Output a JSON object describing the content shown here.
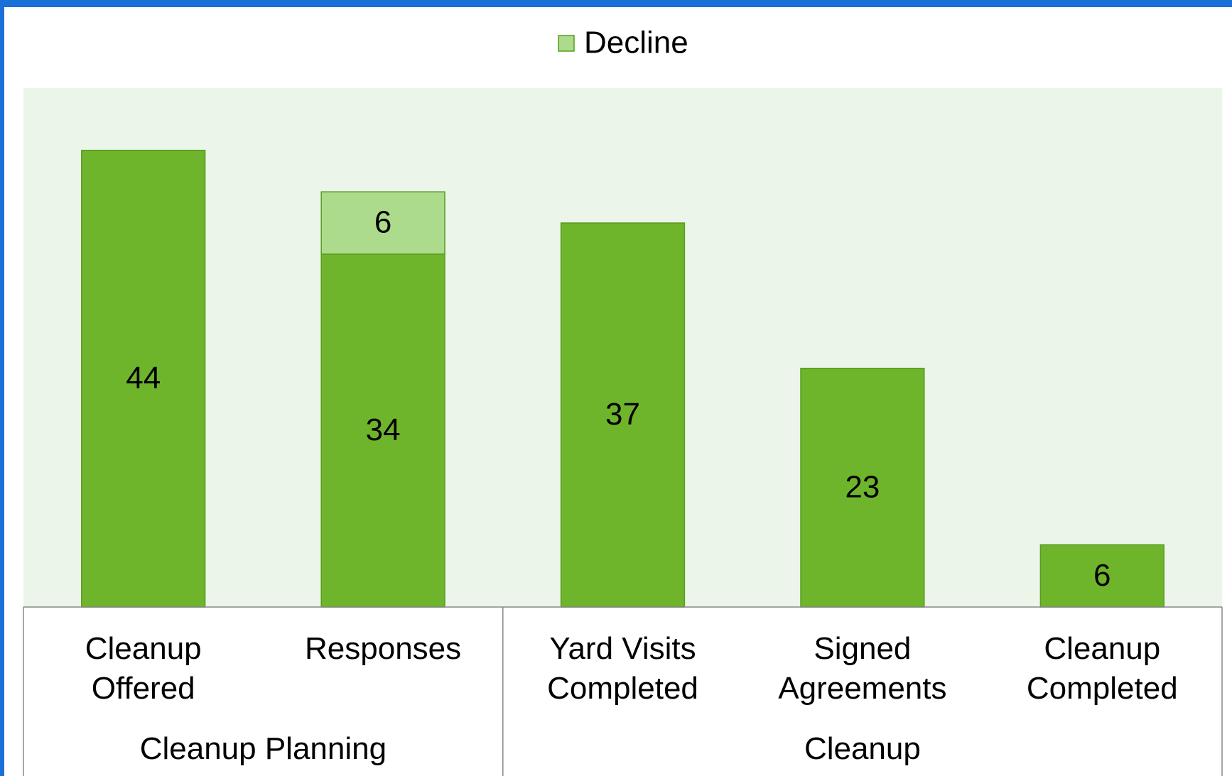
{
  "chart_data": {
    "type": "bar",
    "stacked": true,
    "categories": [
      "Cleanup Offered",
      "Responses",
      "Yard Visits Completed",
      "Signed Agreements",
      "Cleanup Completed"
    ],
    "groups": [
      {
        "label": "Cleanup Planning",
        "span": 2
      },
      {
        "label": "Cleanup",
        "span": 3
      }
    ],
    "series": [
      {
        "color": "#6fb52c",
        "values": [
          44,
          34,
          37,
          23,
          6
        ]
      },
      {
        "name": "Decline",
        "color": "#acdb8c",
        "values": [
          null,
          6,
          null,
          null,
          null
        ]
      }
    ],
    "ylim": [
      0,
      50
    ],
    "legend": "top",
    "plot_background": "#ebf5e9"
  }
}
